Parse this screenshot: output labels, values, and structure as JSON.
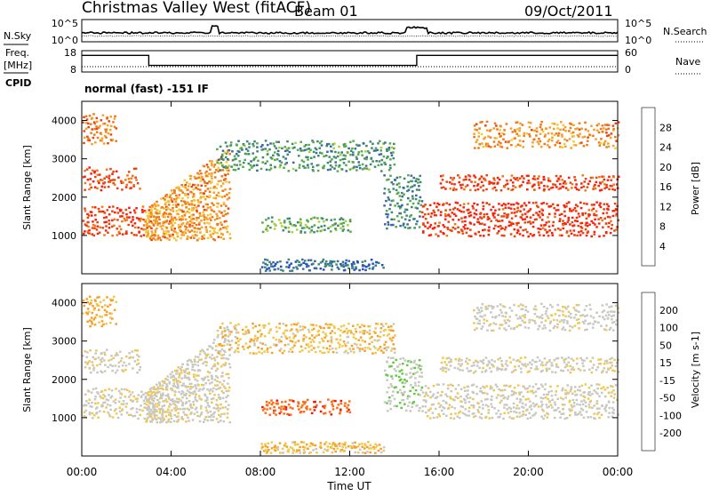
{
  "header": {
    "station": "Christmas Valley West (fitACF)",
    "beam": "Beam 01",
    "date": "09/Oct/2011",
    "left_labels": {
      "nsky": "N.Sky",
      "freq": "Freq.",
      "freq_unit": "[MHz]",
      "cpid": "CPID"
    },
    "right_labels": {
      "nsearch": "N.Search",
      "nave": "Nave"
    },
    "noise_ticks": [
      "10^5",
      "10^0"
    ],
    "freq_ticks": [
      "18",
      "8"
    ],
    "nave_ticks": [
      "60",
      "0"
    ],
    "cpid_text": "normal (fast) -151 IF"
  },
  "colors": {
    "power": [
      "#1a24ff",
      "#234cc8",
      "#3a6aa0",
      "#3c8c6e",
      "#5aa84e",
      "#a8d23c",
      "#f6c832",
      "#f6a028",
      "#f07818",
      "#e8460c",
      "#ff1e0a"
    ],
    "velocity": [
      "#e81e0a",
      "#ff6a14",
      "#f6a028",
      "#f0c850",
      "#c8c8c0",
      "#c8c8c0",
      "#64c846",
      "#2e9c2e",
      "#2a78b4",
      "#1a24b4"
    ],
    "ground_scatter": "#c8c8c0"
  },
  "chart_data": [
    {
      "type": "heatmap",
      "name": "power",
      "xlabel": "",
      "ylabel": "Slant Range [km]",
      "xlim": [
        0,
        24
      ],
      "ylim": [
        0,
        4500
      ],
      "yticks": [
        "1000",
        "2000",
        "3000",
        "4000"
      ],
      "colorbar": {
        "label": "Power [dB]",
        "ticks": [
          "4",
          "8",
          "12",
          "16",
          "20",
          "24",
          "28"
        ],
        "range": [
          0,
          30
        ]
      },
      "regions": [
        {
          "t": [
            0.0,
            2.8
          ],
          "r": [
            1000,
            1800
          ],
          "value": 28
        },
        {
          "t": [
            0.0,
            2.6
          ],
          "r": [
            2200,
            2800
          ],
          "value": 27
        },
        {
          "t": [
            0.0,
            1.5
          ],
          "r": [
            3400,
            4200
          ],
          "value": 24
        },
        {
          "t": [
            2.8,
            6.6
          ],
          "r": [
            900,
            3500
          ],
          "value": 22,
          "slope": 0.66
        },
        {
          "t": [
            6.0,
            14.0
          ],
          "r": [
            2700,
            3500
          ],
          "value": 10
        },
        {
          "t": [
            8.0,
            12.0
          ],
          "r": [
            1100,
            1500
          ],
          "value": 12
        },
        {
          "t": [
            8.0,
            13.5
          ],
          "r": [
            100,
            400
          ],
          "value": 6
        },
        {
          "t": [
            13.5,
            15.2
          ],
          "r": [
            1200,
            2600
          ],
          "value": 9
        },
        {
          "t": [
            15.2,
            24.0
          ],
          "r": [
            1000,
            1900
          ],
          "value": 29
        },
        {
          "t": [
            16.0,
            24.0
          ],
          "r": [
            2200,
            2600
          ],
          "value": 28
        },
        {
          "t": [
            17.5,
            24.0
          ],
          "r": [
            3300,
            4000
          ],
          "value": 22
        }
      ]
    },
    {
      "type": "heatmap",
      "name": "velocity",
      "xlabel": "Time UT",
      "ylabel": "Slant Range [km]",
      "xlim": [
        0,
        24
      ],
      "ylim": [
        0,
        4500
      ],
      "xticks": [
        "00:00",
        "04:00",
        "08:00",
        "12:00",
        "16:00",
        "20:00",
        "00:00"
      ],
      "yticks": [
        "1000",
        "2000",
        "3000",
        "4000"
      ],
      "colorbar": {
        "label": "Velocity [m s-1]",
        "ticks": [
          "200",
          "100",
          "50",
          "15",
          "-15",
          "-50",
          "-100",
          "-200"
        ]
      },
      "regions": [
        {
          "t": [
            0.0,
            2.8
          ],
          "r": [
            1000,
            1800
          ],
          "value": 0
        },
        {
          "t": [
            0.0,
            2.6
          ],
          "r": [
            2200,
            2800
          ],
          "value": 0
        },
        {
          "t": [
            0.0,
            1.5
          ],
          "r": [
            3400,
            4200
          ],
          "value": -60
        },
        {
          "t": [
            2.8,
            6.6
          ],
          "r": [
            900,
            3500
          ],
          "value": 0,
          "slope": 0.66
        },
        {
          "t": [
            6.0,
            14.0
          ],
          "r": [
            2700,
            3500
          ],
          "value": -40
        },
        {
          "t": [
            8.0,
            12.0
          ],
          "r": [
            1100,
            1500
          ],
          "value": -180
        },
        {
          "t": [
            8.0,
            13.5
          ],
          "r": [
            100,
            400
          ],
          "value": -40
        },
        {
          "t": [
            13.5,
            15.2
          ],
          "r": [
            1200,
            2600
          ],
          "value": 40
        },
        {
          "t": [
            15.2,
            24.0
          ],
          "r": [
            1000,
            1900
          ],
          "value": 0
        },
        {
          "t": [
            16.0,
            24.0
          ],
          "r": [
            2200,
            2600
          ],
          "value": 0
        },
        {
          "t": [
            17.5,
            24.0
          ],
          "r": [
            3300,
            4000
          ],
          "value": 0
        }
      ]
    },
    {
      "type": "line",
      "name": "frequency",
      "ylim": [
        8,
        18
      ],
      "series": [
        {
          "x": [
            0,
            3.0,
            3.0,
            15.0,
            15.0,
            24
          ],
          "values": [
            15.8,
            15.8,
            11.1,
            11.1,
            15.8,
            15.8
          ]
        }
      ]
    }
  ]
}
